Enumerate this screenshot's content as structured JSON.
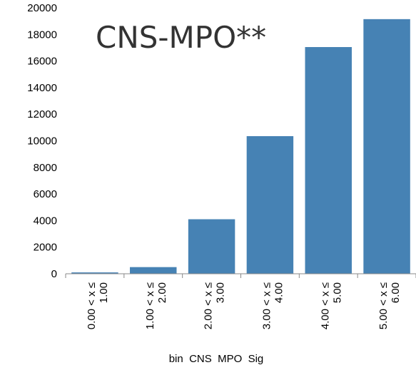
{
  "chart_data": {
    "type": "bar",
    "title": "CNS-MPO**",
    "xlabel": "bin  CNS  MPO  Sig",
    "ylabel": "",
    "categories": [
      "0.00 < x ≤ 1.00",
      "1.00 < x ≤ 2.00",
      "2.00 < x ≤ 3.00",
      "3.00 < x ≤ 4.00",
      "4.00 < x ≤ 5.00",
      "5.00 < x ≤ 6.00"
    ],
    "category_lines": [
      [
        "0.00 < x ≤",
        "1.00"
      ],
      [
        "1.00 < x ≤",
        "2.00"
      ],
      [
        "2.00 < x ≤",
        "3.00"
      ],
      [
        "3.00 < x ≤",
        "4.00"
      ],
      [
        "4.00 < x ≤",
        "5.00"
      ],
      [
        "5.00 < x ≤",
        "6.00"
      ]
    ],
    "values": [
      100,
      500,
      4100,
      10350,
      17050,
      19150
    ],
    "ylim": [
      0,
      20000
    ],
    "yticks": [
      0,
      2000,
      4000,
      6000,
      8000,
      10000,
      12000,
      14000,
      16000,
      18000,
      20000
    ],
    "grid": false,
    "bar_color": "#4682b4"
  }
}
